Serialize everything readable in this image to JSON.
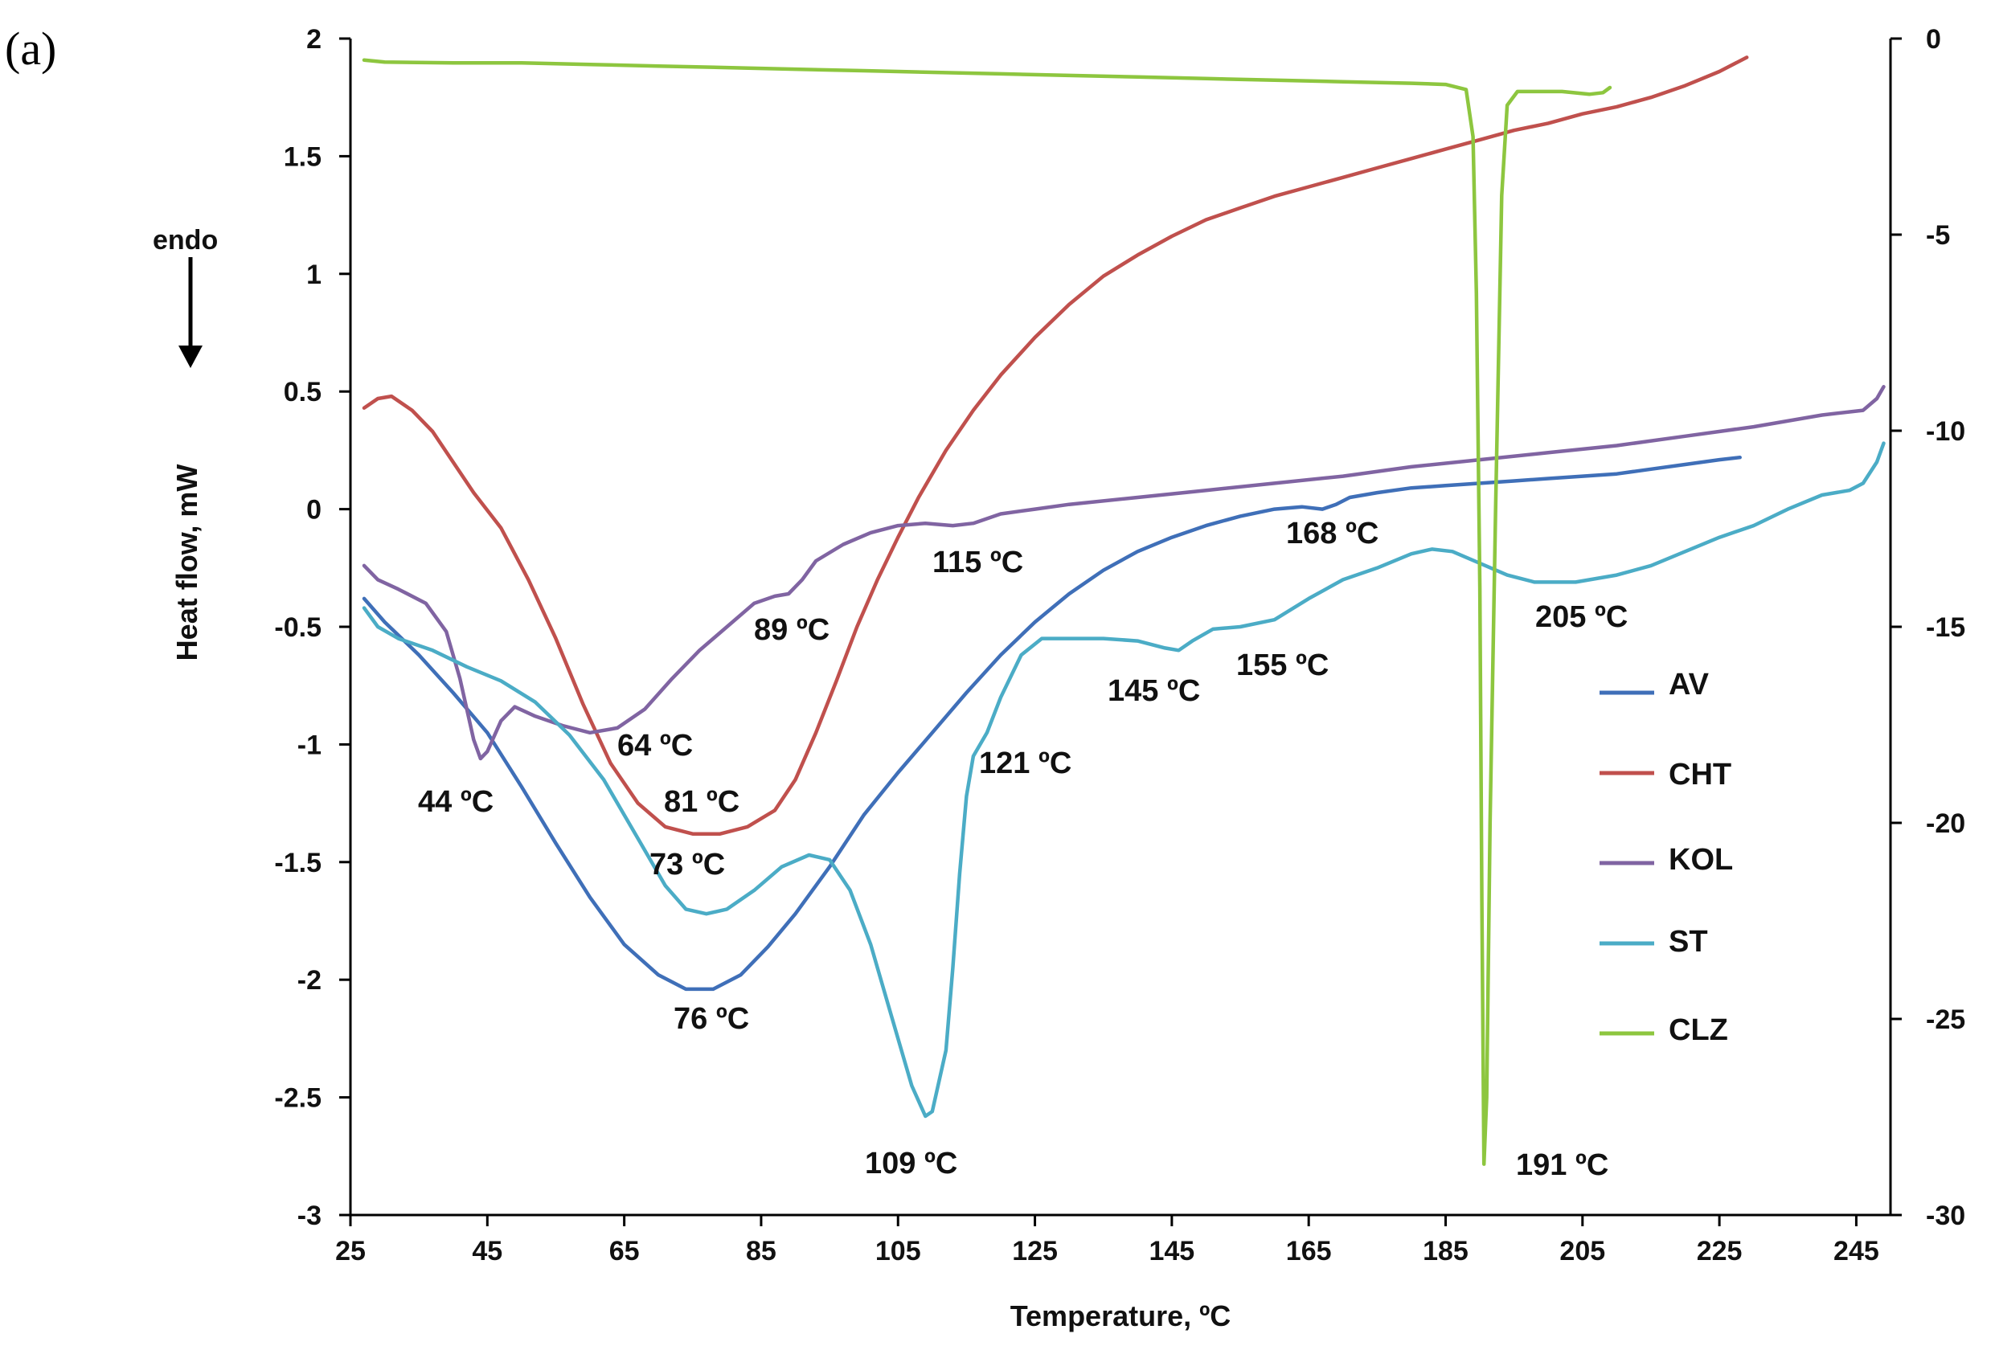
{
  "panel_label": "(a)",
  "endo_label": "endo",
  "chart_data": {
    "type": "line",
    "xlabel": "Temperature, ºC",
    "ylabel": "Heat flow, mW",
    "xlim": [
      25,
      250
    ],
    "ylim": [
      -3,
      2
    ],
    "y2lim": [
      -30,
      0
    ],
    "xticks": [
      25,
      45,
      65,
      85,
      105,
      125,
      145,
      165,
      185,
      205,
      225,
      245
    ],
    "yticks": [
      2,
      1.5,
      1,
      0.5,
      0,
      -0.5,
      -1,
      -1.5,
      -2,
      -2.5,
      -3
    ],
    "y2ticks": [
      0,
      -5,
      -10,
      -15,
      -20,
      -25,
      -30
    ],
    "grid": false,
    "legend_position": "right",
    "series": [
      {
        "name": "AV",
        "color": "#3f6fb8",
        "axis": "left",
        "points": [
          [
            27,
            -0.38
          ],
          [
            30,
            -0.48
          ],
          [
            35,
            -0.62
          ],
          [
            40,
            -0.78
          ],
          [
            45,
            -0.95
          ],
          [
            50,
            -1.18
          ],
          [
            55,
            -1.42
          ],
          [
            60,
            -1.65
          ],
          [
            65,
            -1.85
          ],
          [
            70,
            -1.98
          ],
          [
            74,
            -2.04
          ],
          [
            78,
            -2.04
          ],
          [
            82,
            -1.98
          ],
          [
            86,
            -1.86
          ],
          [
            90,
            -1.72
          ],
          [
            95,
            -1.52
          ],
          [
            100,
            -1.3
          ],
          [
            105,
            -1.12
          ],
          [
            110,
            -0.95
          ],
          [
            115,
            -0.78
          ],
          [
            120,
            -0.62
          ],
          [
            125,
            -0.48
          ],
          [
            130,
            -0.36
          ],
          [
            135,
            -0.26
          ],
          [
            140,
            -0.18
          ],
          [
            145,
            -0.12
          ],
          [
            150,
            -0.07
          ],
          [
            155,
            -0.03
          ],
          [
            160,
            0.0
          ],
          [
            164,
            0.01
          ],
          [
            167,
            0.0
          ],
          [
            169,
            0.02
          ],
          [
            171,
            0.05
          ],
          [
            175,
            0.07
          ],
          [
            180,
            0.09
          ],
          [
            185,
            0.1
          ],
          [
            190,
            0.11
          ],
          [
            195,
            0.12
          ],
          [
            200,
            0.13
          ],
          [
            205,
            0.14
          ],
          [
            210,
            0.15
          ],
          [
            215,
            0.17
          ],
          [
            220,
            0.19
          ],
          [
            225,
            0.21
          ],
          [
            228,
            0.22
          ]
        ]
      },
      {
        "name": "CHT",
        "color": "#c0504d",
        "axis": "left",
        "points": [
          [
            27,
            0.43
          ],
          [
            29,
            0.47
          ],
          [
            31,
            0.48
          ],
          [
            34,
            0.42
          ],
          [
            37,
            0.33
          ],
          [
            40,
            0.2
          ],
          [
            43,
            0.07
          ],
          [
            47,
            -0.08
          ],
          [
            51,
            -0.3
          ],
          [
            55,
            -0.55
          ],
          [
            59,
            -0.83
          ],
          [
            63,
            -1.08
          ],
          [
            67,
            -1.25
          ],
          [
            71,
            -1.35
          ],
          [
            75,
            -1.38
          ],
          [
            79,
            -1.38
          ],
          [
            83,
            -1.35
          ],
          [
            87,
            -1.28
          ],
          [
            90,
            -1.15
          ],
          [
            93,
            -0.95
          ],
          [
            96,
            -0.73
          ],
          [
            99,
            -0.5
          ],
          [
            102,
            -0.3
          ],
          [
            105,
            -0.12
          ],
          [
            108,
            0.05
          ],
          [
            112,
            0.25
          ],
          [
            116,
            0.42
          ],
          [
            120,
            0.57
          ],
          [
            125,
            0.73
          ],
          [
            130,
            0.87
          ],
          [
            135,
            0.99
          ],
          [
            140,
            1.08
          ],
          [
            145,
            1.16
          ],
          [
            150,
            1.23
          ],
          [
            155,
            1.28
          ],
          [
            160,
            1.33
          ],
          [
            165,
            1.37
          ],
          [
            170,
            1.41
          ],
          [
            175,
            1.45
          ],
          [
            180,
            1.49
          ],
          [
            185,
            1.53
          ],
          [
            190,
            1.57
          ],
          [
            195,
            1.61
          ],
          [
            200,
            1.64
          ],
          [
            205,
            1.68
          ],
          [
            210,
            1.71
          ],
          [
            215,
            1.75
          ],
          [
            220,
            1.8
          ],
          [
            225,
            1.86
          ],
          [
            229,
            1.92
          ]
        ]
      },
      {
        "name": "KOL",
        "color": "#8064a2",
        "axis": "left",
        "points": [
          [
            27,
            -0.24
          ],
          [
            29,
            -0.3
          ],
          [
            32,
            -0.34
          ],
          [
            36,
            -0.4
          ],
          [
            39,
            -0.52
          ],
          [
            41,
            -0.72
          ],
          [
            43,
            -0.98
          ],
          [
            44,
            -1.06
          ],
          [
            45,
            -1.03
          ],
          [
            47,
            -0.9
          ],
          [
            49,
            -0.84
          ],
          [
            52,
            -0.88
          ],
          [
            56,
            -0.92
          ],
          [
            60,
            -0.95
          ],
          [
            64,
            -0.93
          ],
          [
            68,
            -0.85
          ],
          [
            72,
            -0.72
          ],
          [
            76,
            -0.6
          ],
          [
            80,
            -0.5
          ],
          [
            84,
            -0.4
          ],
          [
            87,
            -0.37
          ],
          [
            89,
            -0.36
          ],
          [
            91,
            -0.3
          ],
          [
            93,
            -0.22
          ],
          [
            97,
            -0.15
          ],
          [
            101,
            -0.1
          ],
          [
            105,
            -0.07
          ],
          [
            109,
            -0.06
          ],
          [
            113,
            -0.07
          ],
          [
            116,
            -0.06
          ],
          [
            120,
            -0.02
          ],
          [
            125,
            0.0
          ],
          [
            130,
            0.02
          ],
          [
            140,
            0.05
          ],
          [
            150,
            0.08
          ],
          [
            160,
            0.11
          ],
          [
            170,
            0.14
          ],
          [
            180,
            0.18
          ],
          [
            190,
            0.21
          ],
          [
            200,
            0.24
          ],
          [
            210,
            0.27
          ],
          [
            220,
            0.31
          ],
          [
            230,
            0.35
          ],
          [
            240,
            0.4
          ],
          [
            246,
            0.42
          ],
          [
            248,
            0.47
          ],
          [
            249,
            0.52
          ]
        ]
      },
      {
        "name": "ST",
        "color": "#4bacc6",
        "axis": "left",
        "points": [
          [
            27,
            -0.42
          ],
          [
            29,
            -0.5
          ],
          [
            32,
            -0.55
          ],
          [
            37,
            -0.6
          ],
          [
            42,
            -0.67
          ],
          [
            47,
            -0.73
          ],
          [
            52,
            -0.82
          ],
          [
            57,
            -0.96
          ],
          [
            62,
            -1.15
          ],
          [
            67,
            -1.4
          ],
          [
            71,
            -1.6
          ],
          [
            74,
            -1.7
          ],
          [
            77,
            -1.72
          ],
          [
            80,
            -1.7
          ],
          [
            84,
            -1.62
          ],
          [
            88,
            -1.52
          ],
          [
            92,
            -1.47
          ],
          [
            95,
            -1.49
          ],
          [
            98,
            -1.62
          ],
          [
            101,
            -1.85
          ],
          [
            104,
            -2.15
          ],
          [
            107,
            -2.45
          ],
          [
            109,
            -2.58
          ],
          [
            110,
            -2.56
          ],
          [
            112,
            -2.3
          ],
          [
            113,
            -1.95
          ],
          [
            114,
            -1.55
          ],
          [
            115,
            -1.22
          ],
          [
            116,
            -1.05
          ],
          [
            118,
            -0.95
          ],
          [
            120,
            -0.8
          ],
          [
            123,
            -0.62
          ],
          [
            126,
            -0.55
          ],
          [
            130,
            -0.55
          ],
          [
            135,
            -0.55
          ],
          [
            140,
            -0.56
          ],
          [
            144,
            -0.59
          ],
          [
            146,
            -0.6
          ],
          [
            148,
            -0.56
          ],
          [
            151,
            -0.51
          ],
          [
            155,
            -0.5
          ],
          [
            160,
            -0.47
          ],
          [
            165,
            -0.38
          ],
          [
            170,
            -0.3
          ],
          [
            175,
            -0.25
          ],
          [
            180,
            -0.19
          ],
          [
            183,
            -0.17
          ],
          [
            186,
            -0.18
          ],
          [
            190,
            -0.23
          ],
          [
            194,
            -0.28
          ],
          [
            198,
            -0.31
          ],
          [
            204,
            -0.31
          ],
          [
            210,
            -0.28
          ],
          [
            215,
            -0.24
          ],
          [
            220,
            -0.18
          ],
          [
            225,
            -0.12
          ],
          [
            230,
            -0.07
          ],
          [
            235,
            0.0
          ],
          [
            240,
            0.06
          ],
          [
            244,
            0.08
          ],
          [
            246,
            0.11
          ],
          [
            248,
            0.2
          ],
          [
            249,
            0.28
          ]
        ]
      },
      {
        "name": "CLZ",
        "color": "#8dc63f",
        "axis": "right",
        "points": [
          [
            27,
            -0.55
          ],
          [
            30,
            -0.6
          ],
          [
            40,
            -0.62
          ],
          [
            50,
            -0.62
          ],
          [
            60,
            -0.66
          ],
          [
            70,
            -0.7
          ],
          [
            80,
            -0.74
          ],
          [
            90,
            -0.78
          ],
          [
            100,
            -0.82
          ],
          [
            110,
            -0.86
          ],
          [
            120,
            -0.9
          ],
          [
            130,
            -0.94
          ],
          [
            140,
            -0.98
          ],
          [
            150,
            -1.02
          ],
          [
            160,
            -1.06
          ],
          [
            170,
            -1.1
          ],
          [
            180,
            -1.14
          ],
          [
            185,
            -1.17
          ],
          [
            188,
            -1.3
          ],
          [
            189,
            -2.5
          ],
          [
            189.5,
            -6.5
          ],
          [
            190,
            -14
          ],
          [
            190.3,
            -22
          ],
          [
            190.6,
            -28.7
          ],
          [
            191,
            -27
          ],
          [
            191.5,
            -20
          ],
          [
            192.3,
            -12
          ],
          [
            193.2,
            -4
          ],
          [
            194,
            -1.7
          ],
          [
            195.5,
            -1.35
          ],
          [
            198,
            -1.35
          ],
          [
            202,
            -1.35
          ],
          [
            206,
            -1.42
          ],
          [
            208,
            -1.38
          ],
          [
            209,
            -1.25
          ]
        ]
      }
    ],
    "annotations": [
      "44 ºC",
      "64 ºC",
      "81 ºC",
      "73 ºC",
      "76 ºC",
      "89 ºC",
      "115 ºC",
      "109 ºC",
      "121 ºC",
      "145 ºC",
      "155 ºC",
      "168 ºC",
      "205 ºC",
      "191 ºC"
    ]
  }
}
